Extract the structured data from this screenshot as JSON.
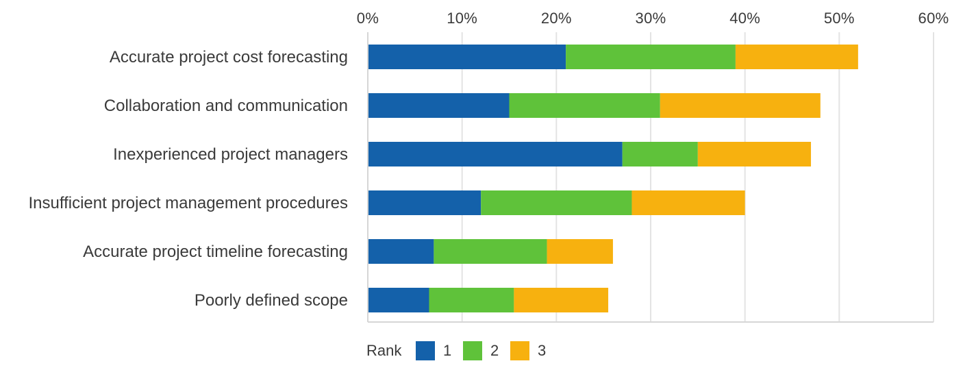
{
  "chart_data": {
    "type": "bar",
    "orientation": "horizontal",
    "stacked": true,
    "title": "",
    "xlabel": "",
    "ylabel": "",
    "xlim": [
      0,
      60
    ],
    "x_ticks": [
      0,
      10,
      20,
      30,
      40,
      50,
      60
    ],
    "x_tick_labels": [
      "0%",
      "10%",
      "20%",
      "30%",
      "40%",
      "50%",
      "60%"
    ],
    "grid": true,
    "categories": [
      "Accurate project cost forecasting",
      "Collaboration and communication",
      "Inexperienced project managers",
      "Insufficient project management procedures",
      "Accurate project timeline forecasting",
      "Poorly defined scope"
    ],
    "series": [
      {
        "name": "1",
        "color": "#1461aa",
        "values": [
          21,
          15,
          27,
          12,
          7,
          6.5
        ]
      },
      {
        "name": "2",
        "color": "#5fc23a",
        "values": [
          18,
          16,
          8,
          16,
          12,
          9
        ]
      },
      {
        "name": "3",
        "color": "#f7b10f",
        "values": [
          13,
          17,
          12,
          12,
          7,
          10
        ]
      }
    ],
    "legend": {
      "title": "Rank",
      "position": "bottom-left"
    }
  }
}
